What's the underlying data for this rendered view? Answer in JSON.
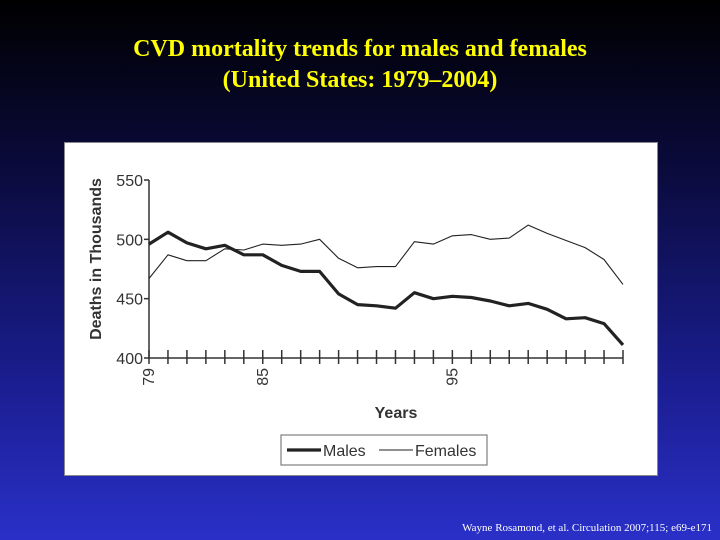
{
  "slide": {
    "title_line1": "CVD mortality trends for males and females",
    "title_line2": "(United States: 1979–2004)",
    "citation": "Wayne Rosamond, et al. Circulation 2007;115; e69-e171"
  },
  "colors": {
    "title": "#ffff00",
    "males": "#222222",
    "females": "#222222"
  },
  "chart_data": {
    "type": "line",
    "title": "",
    "xlabel": "Years",
    "ylabel": "Deaths in Thousands",
    "ylim": [
      400,
      550
    ],
    "yticks": [
      400,
      450,
      500,
      550
    ],
    "x": [
      1979,
      1980,
      1981,
      1982,
      1983,
      1984,
      1985,
      1986,
      1987,
      1988,
      1989,
      1990,
      1991,
      1992,
      1993,
      1994,
      1995,
      1996,
      1997,
      1998,
      1999,
      2000,
      2001,
      2002,
      2003,
      2004
    ],
    "xtick_labels": [
      {
        "x": 1979,
        "label": "79"
      },
      {
        "x": 1985,
        "label": "85"
      },
      {
        "x": 1995,
        "label": "95"
      }
    ],
    "legend_position": "bottom-center",
    "grid": false,
    "series": [
      {
        "name": "Males",
        "line": "thick",
        "values": [
          496,
          506,
          497,
          492,
          495,
          487,
          487,
          478,
          473,
          473,
          454,
          445,
          444,
          442,
          455,
          450,
          452,
          451,
          448,
          444,
          446,
          441,
          433,
          434,
          429,
          411
        ]
      },
      {
        "name": "Females",
        "line": "thin",
        "values": [
          467,
          487,
          482,
          482,
          492,
          491,
          496,
          495,
          496,
          500,
          484,
          476,
          477,
          477,
          498,
          496,
          503,
          504,
          500,
          501,
          512,
          505,
          499,
          493,
          483,
          462
        ]
      }
    ]
  }
}
